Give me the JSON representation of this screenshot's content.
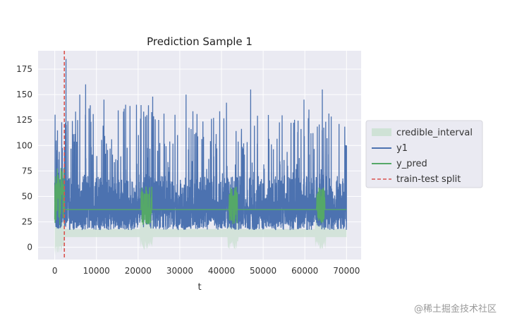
{
  "chart_data": {
    "type": "line",
    "title": "Prediction Sample 1",
    "xlabel": "t",
    "ylabel": "",
    "xlim": [
      -4000,
      73500
    ],
    "ylim": [
      -12,
      193
    ],
    "xticks": [
      0,
      10000,
      20000,
      30000,
      40000,
      50000,
      60000,
      70000
    ],
    "yticks": [
      0,
      25,
      50,
      75,
      100,
      125,
      150,
      175
    ],
    "grid": true,
    "legend_position": "right",
    "train_test_split": 2300,
    "series": [
      {
        "name": "credible_interval",
        "type": "band",
        "color": "#cfe2d6",
        "base_lower": 10,
        "base_upper": 18,
        "bursts": [
          [
            0,
            2300,
            -8,
            40
          ],
          [
            20500,
            23500,
            -3,
            35
          ],
          [
            41500,
            44000,
            -3,
            35
          ],
          [
            62500,
            65000,
            -3,
            35
          ]
        ]
      },
      {
        "name": "y1",
        "type": "line",
        "color": "#4c72b0",
        "typical_low": 17,
        "typical_high": 70,
        "max_value": 185,
        "peaks": [
          [
            2700,
            185
          ],
          [
            7400,
            160
          ],
          [
            6000,
            150
          ],
          [
            11800,
            145
          ],
          [
            17000,
            140
          ],
          [
            19600,
            140
          ],
          [
            23500,
            148
          ],
          [
            31500,
            150
          ],
          [
            41200,
            142
          ],
          [
            47000,
            155
          ],
          [
            59800,
            145
          ],
          [
            64200,
            155
          ],
          [
            70000,
            100
          ]
        ]
      },
      {
        "name": "y_pred",
        "type": "line",
        "color": "#55a868",
        "base_value": 37,
        "bursts": [
          [
            0,
            2300,
            22,
            78
          ],
          [
            20700,
            23300,
            22,
            60
          ],
          [
            41800,
            43800,
            22,
            60
          ],
          [
            62800,
            64800,
            22,
            60
          ]
        ]
      },
      {
        "name": "train-test split",
        "type": "vline",
        "color": "#d9534f",
        "x": 2300
      }
    ]
  },
  "watermark": "@稀土掘金技术社区"
}
